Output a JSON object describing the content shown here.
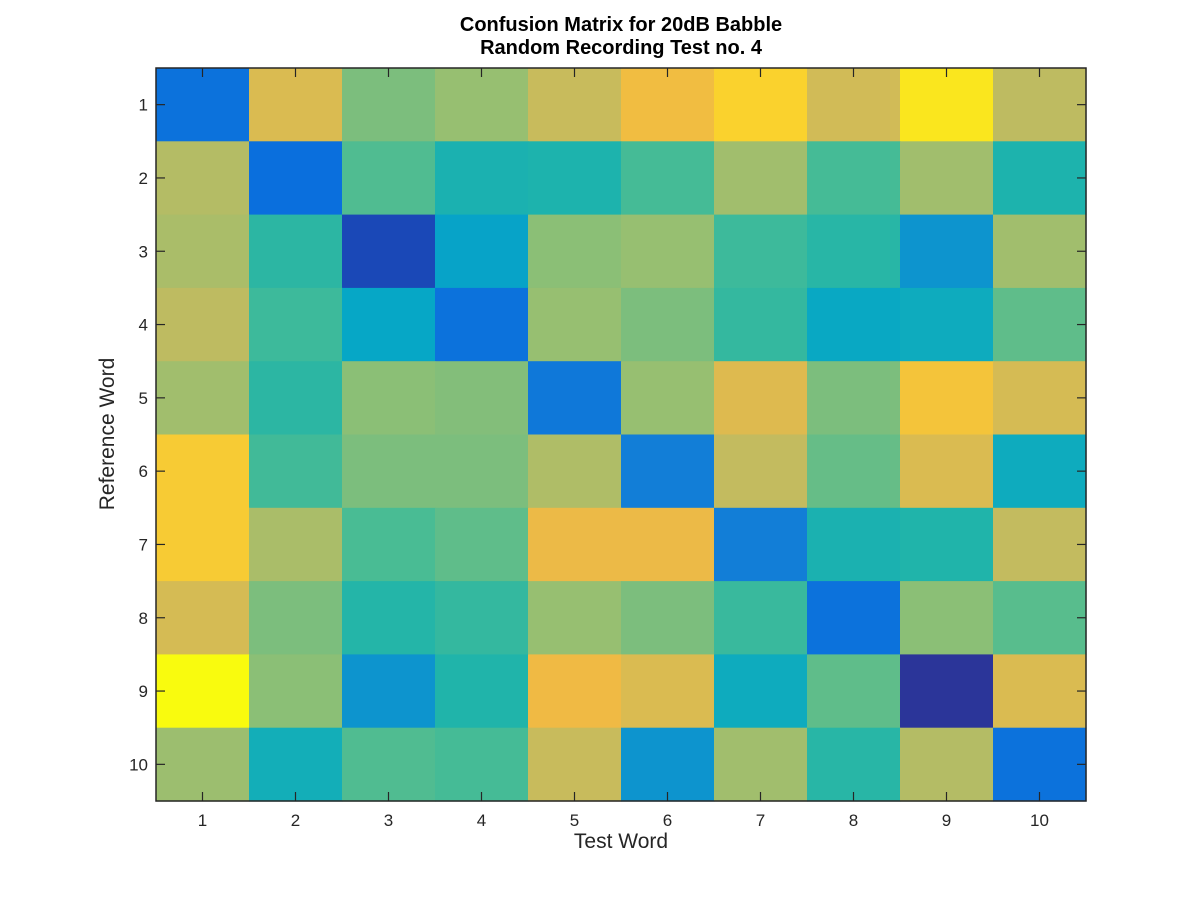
{
  "chart_data": {
    "type": "heatmap",
    "title": [
      "Confusion Matrix for 20dB Babble",
      "Random Recording Test no. 4"
    ],
    "xlabel": "Test Word",
    "ylabel": "Reference Word",
    "xticks": [
      "1",
      "2",
      "3",
      "4",
      "5",
      "6",
      "7",
      "8",
      "9",
      "10"
    ],
    "yticks": [
      "1",
      "2",
      "3",
      "4",
      "5",
      "6",
      "7",
      "8",
      "9",
      "10"
    ],
    "colormap": "parula",
    "grid": false,
    "colorbar": false,
    "values": [
      [
        0.2,
        0.8,
        0.62,
        0.66,
        0.76,
        0.86,
        0.92,
        0.78,
        0.96,
        0.74
      ],
      [
        0.72,
        0.19,
        0.56,
        0.43,
        0.44,
        0.54,
        0.68,
        0.54,
        0.68,
        0.44
      ],
      [
        0.7,
        0.48,
        0.08,
        0.34,
        0.64,
        0.66,
        0.52,
        0.47,
        0.3,
        0.68
      ],
      [
        0.74,
        0.52,
        0.35,
        0.2,
        0.66,
        0.62,
        0.5,
        0.36,
        0.38,
        0.58
      ],
      [
        0.68,
        0.48,
        0.64,
        0.63,
        0.22,
        0.66,
        0.81,
        0.62,
        0.88,
        0.79
      ],
      [
        0.9,
        0.53,
        0.62,
        0.62,
        0.71,
        0.24,
        0.75,
        0.59,
        0.8,
        0.38
      ],
      [
        0.9,
        0.7,
        0.55,
        0.58,
        0.84,
        0.84,
        0.24,
        0.43,
        0.45,
        0.75
      ],
      [
        0.79,
        0.62,
        0.46,
        0.5,
        0.66,
        0.62,
        0.51,
        0.2,
        0.64,
        0.57
      ],
      [
        1.0,
        0.64,
        0.3,
        0.45,
        0.85,
        0.8,
        0.38,
        0.58,
        0.03,
        0.8
      ],
      [
        0.67,
        0.4,
        0.56,
        0.54,
        0.76,
        0.3,
        0.68,
        0.47,
        0.72,
        0.2
      ]
    ]
  }
}
